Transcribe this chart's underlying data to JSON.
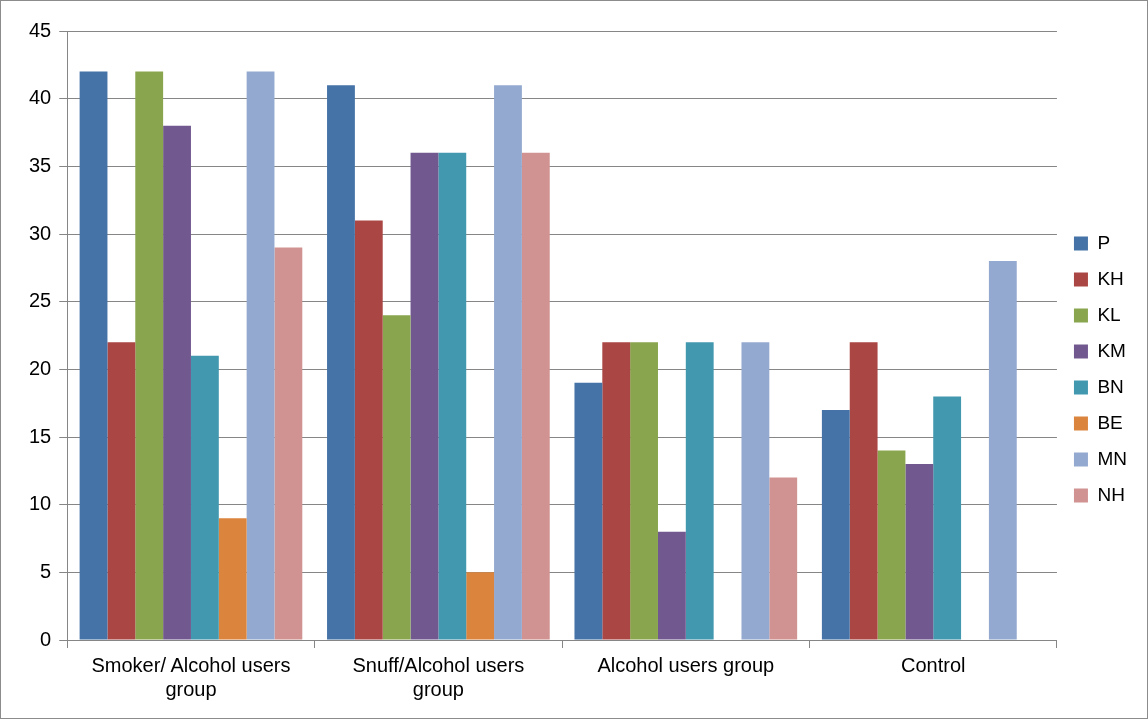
{
  "chart_data": {
    "type": "bar",
    "categories": [
      "Smoker/ Alcohol users group",
      "Snuff/Alcohol users group",
      "Alcohol users group",
      "Control"
    ],
    "series": [
      {
        "name": "P",
        "color": "#4572a7",
        "values": [
          42,
          41,
          19,
          17
        ]
      },
      {
        "name": "KH",
        "color": "#aa4643",
        "values": [
          22,
          31,
          22,
          22
        ]
      },
      {
        "name": "KL",
        "color": "#89a54e",
        "values": [
          42,
          24,
          22,
          14
        ]
      },
      {
        "name": "KM",
        "color": "#71588f",
        "values": [
          38,
          36,
          8,
          13
        ]
      },
      {
        "name": "BN",
        "color": "#4198af",
        "values": [
          21,
          36,
          22,
          18
        ]
      },
      {
        "name": "BE",
        "color": "#db843d",
        "values": [
          9,
          5,
          0,
          0
        ]
      },
      {
        "name": "MN",
        "color": "#93a9cf",
        "values": [
          42,
          41,
          22,
          28
        ]
      },
      {
        "name": "NH",
        "color": "#d19392",
        "values": [
          29,
          36,
          12,
          0
        ]
      }
    ],
    "ylim": [
      0,
      45
    ],
    "yticks": [
      0,
      5,
      10,
      15,
      20,
      25,
      30,
      35,
      40,
      45
    ],
    "grid": "y",
    "legend": "right"
  }
}
